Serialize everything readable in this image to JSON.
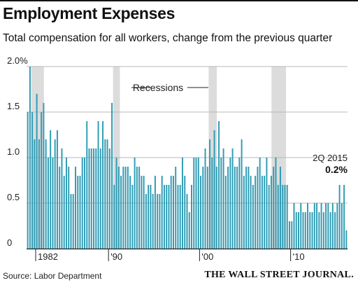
{
  "header": {
    "title": "Employment Expenses",
    "subtitle": "Total compensation for all workers, change from the previous quarter"
  },
  "footer": {
    "source": "Source: Labor Department",
    "brand": "THE WALL STREET JOURNAL."
  },
  "colors": {
    "bar": "#2e9bb4",
    "recession": "#dcdcdc",
    "grid": "#b8b8b8",
    "axis": "#222222"
  },
  "chart_data": {
    "type": "bar",
    "x_start": "1Q 1981",
    "frequency": "quarterly",
    "ylim": [
      0,
      2.0
    ],
    "y_ticks": [
      {
        "value": 0,
        "label": "0"
      },
      {
        "value": 0.5,
        "label": "0.5"
      },
      {
        "value": 1.0,
        "label": "1.0"
      },
      {
        "value": 1.5,
        "label": "1.5"
      },
      {
        "value": 2.0,
        "label": "2.0%"
      }
    ],
    "x_ticks": [
      {
        "year": 1982,
        "label": "1982"
      },
      {
        "year": 1990,
        "label": "'90"
      },
      {
        "year": 2000,
        "label": "'00"
      },
      {
        "year": 2010,
        "label": "'10"
      }
    ],
    "grid": true,
    "recession_label": "Recessions",
    "recessions": [
      {
        "start": 1981.5,
        "end": 1982.9
      },
      {
        "start": 1990.5,
        "end": 1991.25
      },
      {
        "start": 2001.0,
        "end": 2001.9
      },
      {
        "start": 2007.9,
        "end": 2009.5
      }
    ],
    "annotation": {
      "period": "2Q 2015",
      "value_label": "0.2%"
    },
    "values": [
      1.5,
      2.0,
      1.5,
      1.2,
      1.7,
      1.2,
      1.5,
      1.6,
      1.2,
      1.0,
      1.3,
      1.0,
      1.2,
      1.3,
      0.9,
      1.1,
      0.8,
      1.0,
      0.9,
      0.6,
      0.6,
      0.9,
      0.8,
      0.8,
      1.0,
      1.0,
      1.4,
      1.1,
      1.1,
      1.1,
      1.1,
      1.4,
      1.1,
      1.4,
      1.2,
      1.2,
      1.1,
      1.6,
      0.7,
      1.0,
      0.9,
      0.8,
      0.9,
      0.9,
      0.9,
      0.8,
      0.7,
      1.0,
      0.9,
      0.9,
      0.8,
      0.8,
      0.6,
      0.7,
      0.7,
      0.6,
      0.8,
      0.6,
      0.6,
      0.8,
      0.7,
      0.7,
      0.7,
      0.8,
      0.8,
      0.9,
      0.7,
      0.7,
      1.0,
      0.8,
      0.6,
      0.4,
      0.7,
      1.0,
      1.0,
      1.0,
      0.8,
      0.9,
      1.1,
      0.9,
      1.2,
      1.0,
      1.3,
      0.9,
      1.4,
      1.0,
      1.1,
      0.8,
      0.9,
      1.0,
      1.1,
      0.9,
      0.9,
      1.0,
      1.2,
      0.8,
      0.9,
      0.9,
      0.8,
      0.7,
      0.8,
      0.9,
      1.0,
      0.8,
      0.8,
      1.0,
      0.7,
      0.8,
      0.9,
      1.0,
      0.7,
      0.9,
      0.7,
      0.7,
      0.7,
      0.3,
      0.3,
      0.5,
      0.4,
      0.4,
      0.5,
      0.4,
      0.4,
      0.5,
      0.4,
      0.4,
      0.5,
      0.5,
      0.4,
      0.5,
      0.4,
      0.5,
      0.5,
      0.4,
      0.5,
      0.4,
      0.5,
      0.7,
      0.5,
      0.7,
      0.2
    ]
  }
}
